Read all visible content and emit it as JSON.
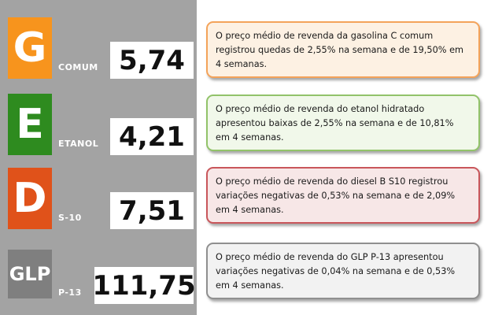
{
  "items": [
    {
      "letter": "G",
      "label": "COMUM",
      "price": "5,74",
      "color": "#f7941d",
      "note": "O preço médio de revenda da gasolina C comum registrou quedas de 2,55% na semana e de 19,50% em 4 semanas.",
      "note_bg": "#fdf1e3",
      "note_border": "#f4a35a"
    },
    {
      "letter": "E",
      "label": "ETANOL",
      "price": "4,21",
      "color": "#2e8b1f",
      "note": "O preço médio de revenda do etanol hidratado apresentou baixas de 2,55% na semana e de 10,81% em 4 semanas.",
      "note_bg": "#f1f8ea",
      "note_border": "#92c36a"
    },
    {
      "letter": "D",
      "label": "S-10",
      "price": "7,51",
      "color": "#e0521a",
      "note": "O preço médio de revenda do diesel B S10 registrou variações negativas de 0,53% na semana e de 2,09% em 4 semanas.",
      "note_bg": "#f7e7e7",
      "note_border": "#c9565b"
    },
    {
      "letter": "GLP",
      "label": "P-13",
      "price": "111,75",
      "color": "#7f7f7f",
      "note": "O preço médio de revenda do GLP P-13 apresentou variações negativas de 0,04% na semana e de 0,53% em 4 semanas.",
      "note_bg": "#f2f2f2",
      "note_border": "#8f8f8f"
    }
  ]
}
